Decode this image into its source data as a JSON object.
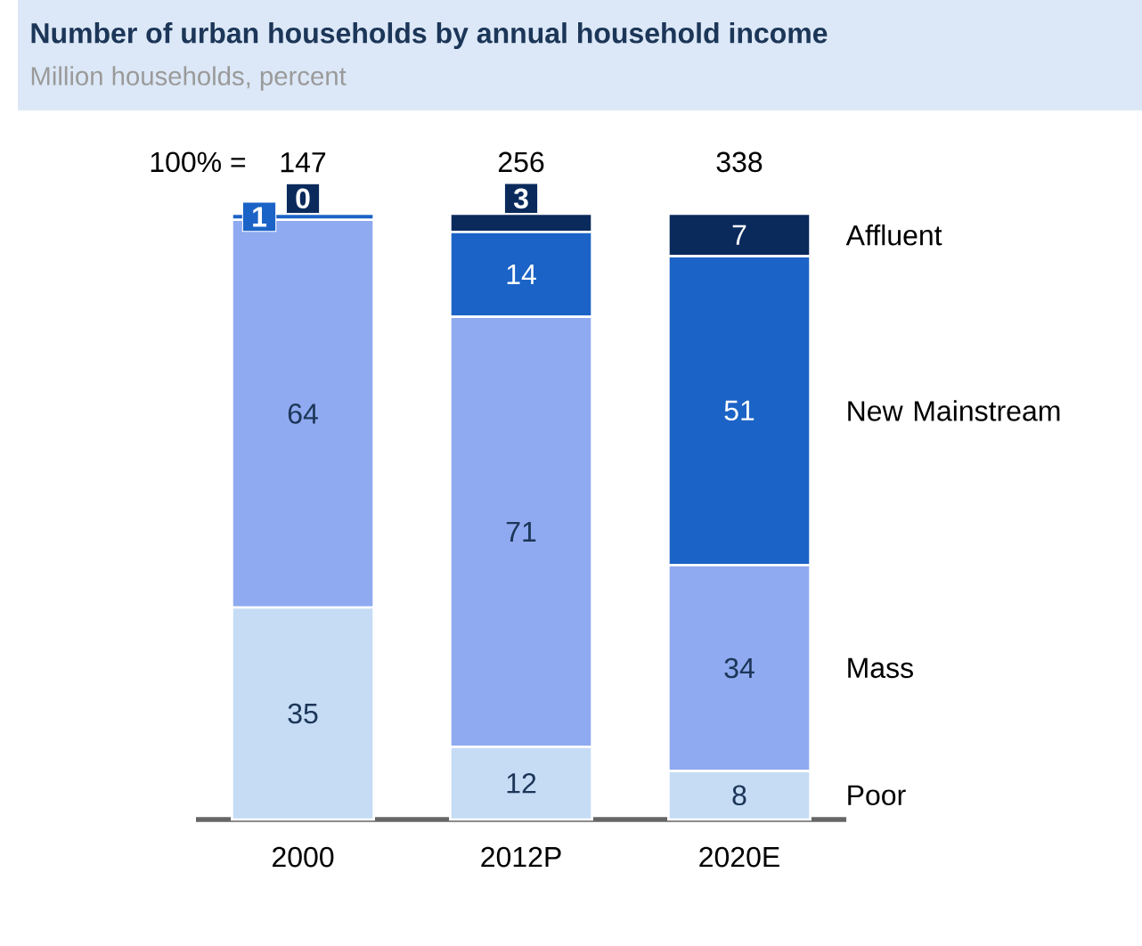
{
  "chart_data": {
    "type": "bar",
    "stacked": true,
    "title": "Number of urban households by annual household income",
    "subtitle": "Million households, percent",
    "categories": [
      "2000",
      "2012P",
      "2020E"
    ],
    "series": [
      {
        "name": "Poor",
        "color": "#c6dcf5",
        "values": [
          35,
          12,
          8
        ]
      },
      {
        "name": "Mass",
        "color": "#8faaf0",
        "values": [
          64,
          71,
          34
        ]
      },
      {
        "name": "New Mainstream",
        "color": "#1b63c6",
        "values": [
          1,
          14,
          51
        ]
      },
      {
        "name": "Affluent",
        "color": "#0a2a5c",
        "values": [
          0,
          3,
          7
        ]
      }
    ],
    "data_labels": true,
    "annotations": [
      "100% =",
      "147",
      "256",
      "338"
    ],
    "legend": false
  }
}
